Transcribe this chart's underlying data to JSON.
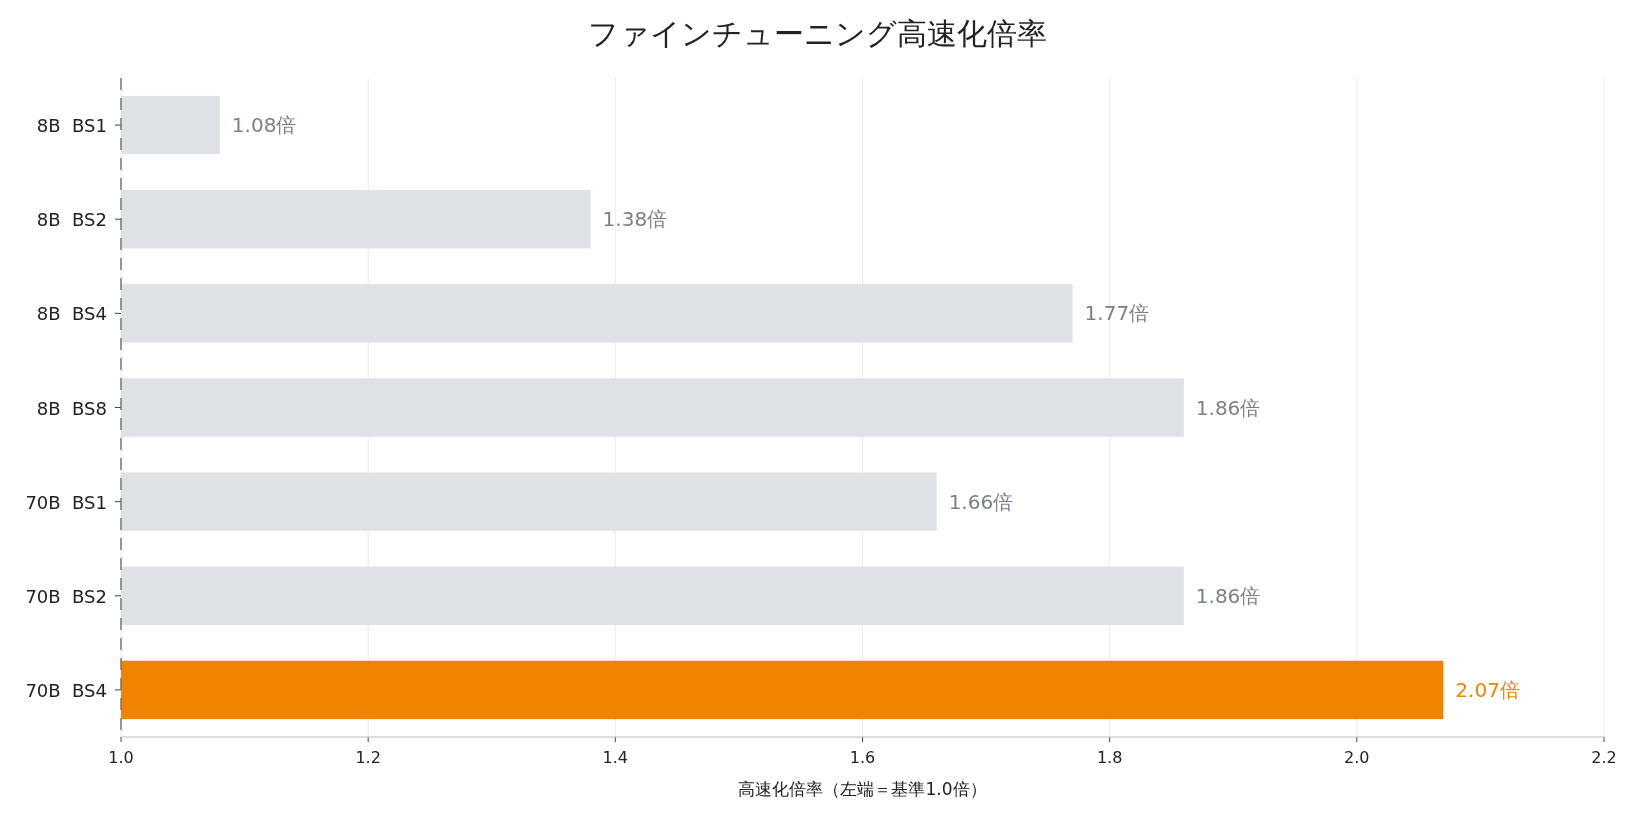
{
  "chart_data": {
    "type": "bar",
    "orientation": "horizontal",
    "title": "ファインチューニング高速化倍率",
    "xlabel": "高速化倍率（左端＝基準1.0倍）",
    "categories": [
      "8B  BS1",
      "8B  BS2",
      "8B  BS4",
      "8B  BS8",
      "70B  BS1",
      "70B  BS2",
      "70B  BS4"
    ],
    "values": [
      1.08,
      1.38,
      1.77,
      1.86,
      1.66,
      1.86,
      2.07
    ],
    "colors": [
      "#dee1e5",
      "#dee1e5",
      "#dee1e5",
      "#dee1e5",
      "#dee1e5",
      "#dee1e5",
      "#f08300"
    ],
    "value_labels": [
      "1.08倍",
      "1.38倍",
      "1.77倍",
      "1.86倍",
      "1.66倍",
      "1.86倍",
      "2.07倍"
    ],
    "xlim": [
      1.0,
      2.2
    ],
    "xticks": [
      {
        "value": 1.0,
        "label": "1.0"
      },
      {
        "value": 1.2,
        "label": "1.2"
      },
      {
        "value": 1.4,
        "label": "1.4"
      },
      {
        "value": 1.6,
        "label": "1.6"
      },
      {
        "value": 1.8,
        "label": "1.8"
      },
      {
        "value": 2.0,
        "label": "2.0"
      },
      {
        "value": 2.2,
        "label": "2.2"
      }
    ],
    "ref_lines": [
      {
        "axis": "x",
        "value": 1.0,
        "color": "#777777",
        "line_style": "dashed"
      }
    ],
    "grid": "x"
  }
}
